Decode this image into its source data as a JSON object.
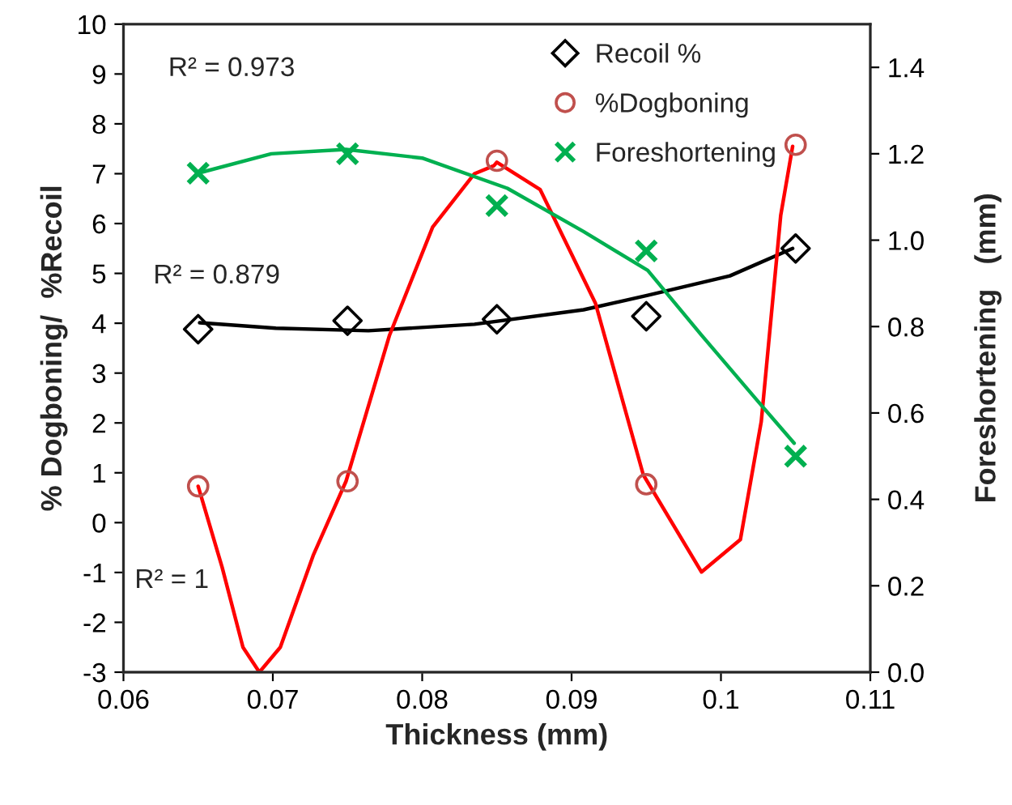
{
  "chart_data": {
    "type": "scatter",
    "xlabel": "Thickness (mm)",
    "ylabel": "% Dogboning/  %Recoil",
    "y2label": "Foreshortening   (mm)",
    "xlim": [
      0.06,
      0.11
    ],
    "xticks": [
      0.06,
      0.07,
      0.08,
      0.09,
      0.1,
      0.11
    ],
    "ylim": [
      -3,
      10
    ],
    "yticks": [
      -3,
      -2,
      -1,
      0,
      1,
      2,
      3,
      4,
      5,
      6,
      7,
      8,
      9,
      10
    ],
    "y2lim": [
      0,
      1.5
    ],
    "y2ticks": [
      {
        "value": 0,
        "label": "0.0"
      },
      {
        "value": 0.2,
        "label": "0.2"
      },
      {
        "value": 0.4,
        "label": "0.4"
      },
      {
        "value": 0.6,
        "label": "0.6"
      },
      {
        "value": 0.8,
        "label": "0.8"
      },
      {
        "value": 1.0,
        "label": "1.0"
      },
      {
        "value": 1.2,
        "label": "1.2"
      },
      {
        "value": 1.4,
        "label": "1.4"
      }
    ],
    "grid": false,
    "legend": "top right",
    "annotations": [
      "R² = 0.973",
      "R² = 0.879",
      "R² = 1"
    ],
    "series": [
      {
        "type": "line",
        "color": "#000000",
        "marker": "none",
        "x": [
          0.0651,
          0.0702,
          0.0764,
          0.0835,
          0.0908,
          0.0951,
          0.1006,
          0.1048
        ],
        "values": [
          4.01,
          3.9,
          3.85,
          3.98,
          4.27,
          4.56,
          4.95,
          5.5
        ]
      },
      {
        "type": "line",
        "color": "#ff0000",
        "marker": "none",
        "x": [
          0.065,
          0.0666,
          0.068,
          0.0691,
          0.0705,
          0.0727,
          0.0749,
          0.0778,
          0.0807,
          0.0835,
          0.0848,
          0.085,
          0.0879,
          0.0916,
          0.0948,
          0.0987,
          0.1013,
          0.1027,
          0.104,
          0.1048
        ],
        "values": [
          0.73,
          -0.89,
          -2.5,
          -3.0,
          -2.5,
          -0.66,
          0.83,
          3.75,
          5.93,
          7.0,
          7.16,
          7.23,
          6.68,
          4.4,
          0.96,
          -0.99,
          -0.34,
          2.03,
          6.16,
          7.55
        ]
      },
      {
        "type": "line",
        "color": "#00b050",
        "marker": "none",
        "axis": "y2",
        "x": [
          0.065,
          0.0699,
          0.0749,
          0.08,
          0.0857,
          0.0908,
          0.0951,
          0.0987,
          0.1024,
          0.1049
        ],
        "values": [
          1.155,
          1.2,
          1.21,
          1.19,
          1.12,
          1.02,
          0.93,
          0.78,
          0.63,
          0.53
        ]
      },
      {
        "name": "Recoil %",
        "color": "#000000",
        "marker": "diamond",
        "x": [
          0.065,
          0.075,
          0.085,
          0.095,
          0.105
        ],
        "values": [
          3.88,
          4.05,
          4.08,
          4.14,
          5.5
        ]
      },
      {
        "name": "%Dogboning",
        "color": "#c0504d",
        "marker": "circle",
        "x": [
          0.065,
          0.075,
          0.085,
          0.095,
          0.105
        ],
        "values": [
          0.73,
          0.83,
          7.26,
          0.77,
          7.58
        ]
      },
      {
        "name": "Foreshortening",
        "color": "#00b050",
        "marker": "cross",
        "axis": "y2",
        "x": [
          0.065,
          0.075,
          0.085,
          0.095,
          0.105
        ],
        "values": [
          1.155,
          1.2,
          1.08,
          0.975,
          0.5
        ]
      }
    ]
  }
}
